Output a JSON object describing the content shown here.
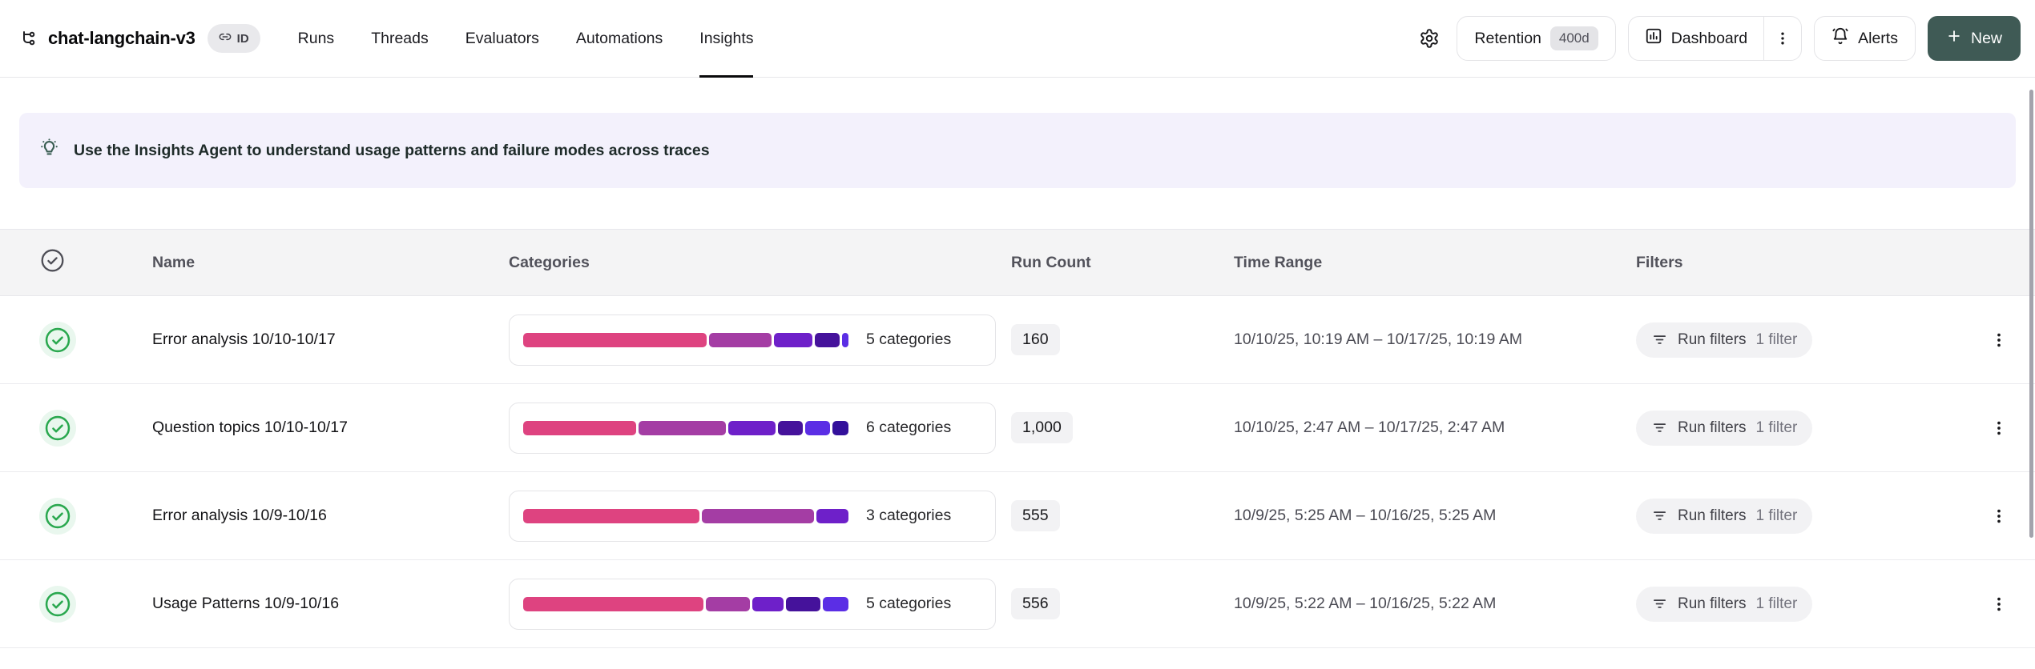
{
  "header": {
    "title": "chat-langchain-v3",
    "id_badge_label": "ID",
    "tabs": [
      {
        "label": "Runs",
        "active": false
      },
      {
        "label": "Threads",
        "active": false
      },
      {
        "label": "Evaluators",
        "active": false
      },
      {
        "label": "Automations",
        "active": false
      },
      {
        "label": "Insights",
        "active": true
      }
    ],
    "retention": {
      "label": "Retention",
      "value": "400d"
    },
    "dashboard": {
      "label": "Dashboard"
    },
    "alerts": {
      "label": "Alerts"
    },
    "new_button": {
      "label": "New"
    },
    "new_button_color": "#3f5a55"
  },
  "banner": {
    "text": "Use the Insights Agent to understand usage patterns and failure modes across traces",
    "background": "#f3f1fc",
    "icon": "lightbulb-icon",
    "icon_color": "#3a5e53"
  },
  "table": {
    "columns": {
      "name": "Name",
      "categories": "Categories",
      "run_count": "Run Count",
      "time_range": "Time Range",
      "filters": "Filters"
    },
    "status_color": "#2aa84f",
    "rows": [
      {
        "name": "Error analysis 10/10-10/17",
        "categories": {
          "label": "5 categories",
          "segments": [
            {
              "color": "#de4380",
              "pct": 58
            },
            {
              "color": "#a43da4",
              "pct": 20
            },
            {
              "color": "#6e20c9",
              "pct": 12
            },
            {
              "color": "#45129b",
              "pct": 8
            },
            {
              "color": "#5b2ee5",
              "pct": 2
            }
          ]
        },
        "run_count": "160",
        "time_range": "10/10/25, 10:19 AM – 10/17/25, 10:19 AM",
        "filters": {
          "label": "Run filters",
          "count": "1 filter"
        }
      },
      {
        "name": "Question topics 10/10-10/17",
        "categories": {
          "label": "6 categories",
          "segments": [
            {
              "color": "#de4380",
              "pct": 36
            },
            {
              "color": "#a43da4",
              "pct": 28
            },
            {
              "color": "#6e20c9",
              "pct": 15
            },
            {
              "color": "#45129b",
              "pct": 8
            },
            {
              "color": "#5b2ee5",
              "pct": 8
            },
            {
              "color": "#33109b",
              "pct": 5
            }
          ]
        },
        "run_count": "1,000",
        "time_range": "10/10/25, 2:47 AM – 10/17/25, 2:47 AM",
        "filters": {
          "label": "Run filters",
          "count": "1 filter"
        }
      },
      {
        "name": "Error analysis 10/9-10/16",
        "categories": {
          "label": "3 categories",
          "segments": [
            {
              "color": "#de4380",
              "pct": 55
            },
            {
              "color": "#a43da4",
              "pct": 35
            },
            {
              "color": "#6e20c9",
              "pct": 10
            }
          ]
        },
        "run_count": "555",
        "time_range": "10/9/25, 5:25 AM – 10/16/25, 5:25 AM",
        "filters": {
          "label": "Run filters",
          "count": "1 filter"
        }
      },
      {
        "name": "Usage Patterns 10/9-10/16",
        "categories": {
          "label": "5 categories",
          "segments": [
            {
              "color": "#de4380",
              "pct": 57
            },
            {
              "color": "#a43da4",
              "pct": 14
            },
            {
              "color": "#6e20c9",
              "pct": 10
            },
            {
              "color": "#45129b",
              "pct": 11
            },
            {
              "color": "#5b2ee5",
              "pct": 8
            }
          ]
        },
        "run_count": "556",
        "time_range": "10/9/25, 5:22 AM – 10/16/25, 5:22 AM",
        "filters": {
          "label": "Run filters",
          "count": "1 filter"
        }
      }
    ]
  }
}
